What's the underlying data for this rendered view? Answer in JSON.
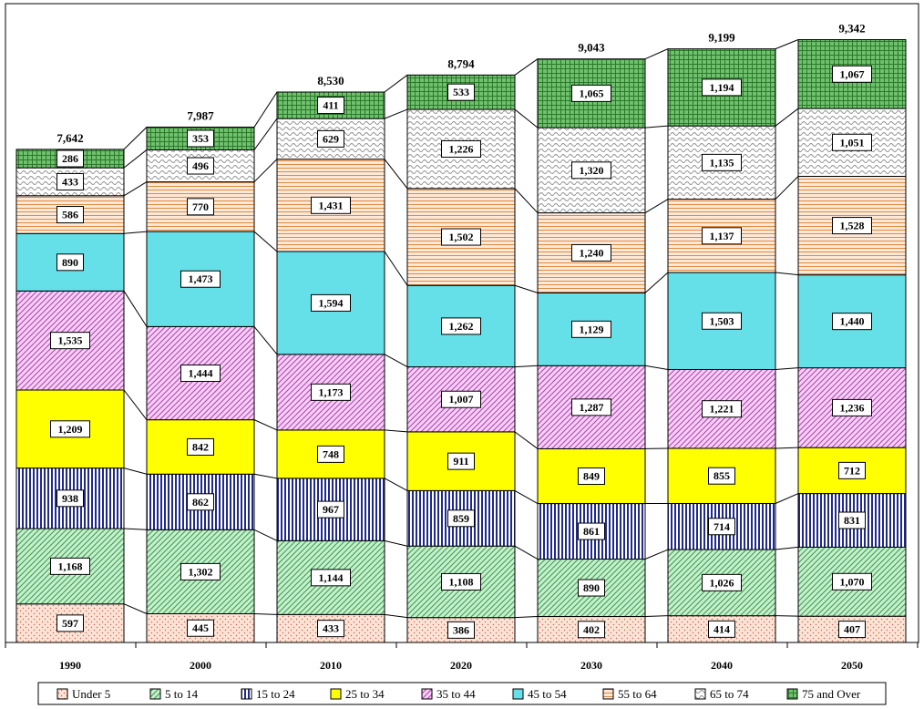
{
  "chart_data": {
    "type": "bar",
    "stacked": true,
    "categories": [
      "1990",
      "2000",
      "2010",
      "2020",
      "2030",
      "2040",
      "2050"
    ],
    "totals": [
      "7,642",
      "7,987",
      "8,530",
      "8,794",
      "9,043",
      "9,199",
      "9,342"
    ],
    "series": [
      {
        "name": "Under 5",
        "color": "#fbe4d5",
        "pattern": "dots",
        "ink": "#d06050",
        "values": [
          597,
          445,
          433,
          386,
          402,
          414,
          407
        ],
        "labels": [
          "597",
          "445",
          "433",
          "386",
          "402",
          "414",
          "407"
        ]
      },
      {
        "name": "5 to 14",
        "color": "#c6efce",
        "pattern": "diag",
        "ink": "#3a9a4a",
        "values": [
          1168,
          1302,
          1144,
          1108,
          890,
          1026,
          1070
        ],
        "labels": [
          "1,168",
          "1,302",
          "1,144",
          "1,108",
          "890",
          "1,026",
          "1,070"
        ]
      },
      {
        "name": "15 to 24",
        "color": "#ffffff",
        "pattern": "vlines",
        "ink": "#1f2a8a",
        "values": [
          938,
          862,
          967,
          859,
          861,
          714,
          831
        ],
        "labels": [
          "938",
          "862",
          "967",
          "859",
          "861",
          "714",
          "831"
        ]
      },
      {
        "name": "25 to 34",
        "color": "#ffff00",
        "pattern": "solid",
        "ink": "#ffff00",
        "values": [
          1209,
          842,
          748,
          911,
          849,
          855,
          712
        ],
        "labels": [
          "1,209",
          "842",
          "748",
          "911",
          "849",
          "855",
          "712"
        ]
      },
      {
        "name": "35 to 44",
        "color": "#f5d0f5",
        "pattern": "diag",
        "ink": "#b040b0",
        "values": [
          1535,
          1444,
          1173,
          1007,
          1287,
          1221,
          1236
        ],
        "labels": [
          "1,535",
          "1,444",
          "1,173",
          "1,007",
          "1,287",
          "1,221",
          "1,236"
        ]
      },
      {
        "name": "45 to 54",
        "color": "#66e0e8",
        "pattern": "solid",
        "ink": "#66e0e8",
        "values": [
          890,
          1473,
          1594,
          1262,
          1129,
          1503,
          1440
        ],
        "labels": [
          "890",
          "1,473",
          "1,594",
          "1,262",
          "1,129",
          "1,503",
          "1,440"
        ]
      },
      {
        "name": "55 to 64",
        "color": "#fde9d9",
        "pattern": "hlines",
        "ink": "#e08a40",
        "values": [
          586,
          770,
          1431,
          1502,
          1240,
          1137,
          1528
        ],
        "labels": [
          "586",
          "770",
          "1,431",
          "1,502",
          "1,240",
          "1,137",
          "1,528"
        ]
      },
      {
        "name": "65 to 74",
        "color": "#ffffff",
        "pattern": "waves",
        "ink": "#909090",
        "values": [
          433,
          496,
          629,
          1226,
          1320,
          1135,
          1051
        ],
        "labels": [
          "433",
          "496",
          "629",
          "1,226",
          "1,320",
          "1,135",
          "1,051"
        ]
      },
      {
        "name": "75 and Over",
        "color": "#70c070",
        "pattern": "grid",
        "ink": "#2a7a2a",
        "values": [
          286,
          353,
          411,
          533,
          1065,
          1194,
          1067
        ],
        "labels": [
          "286",
          "353",
          "411",
          "533",
          "1,065",
          "1,194",
          "1,067"
        ]
      }
    ],
    "xlabel": "",
    "ylabel": "",
    "ylim": [
      0,
      9900
    ],
    "grid": false,
    "legend_position": "bottom"
  }
}
